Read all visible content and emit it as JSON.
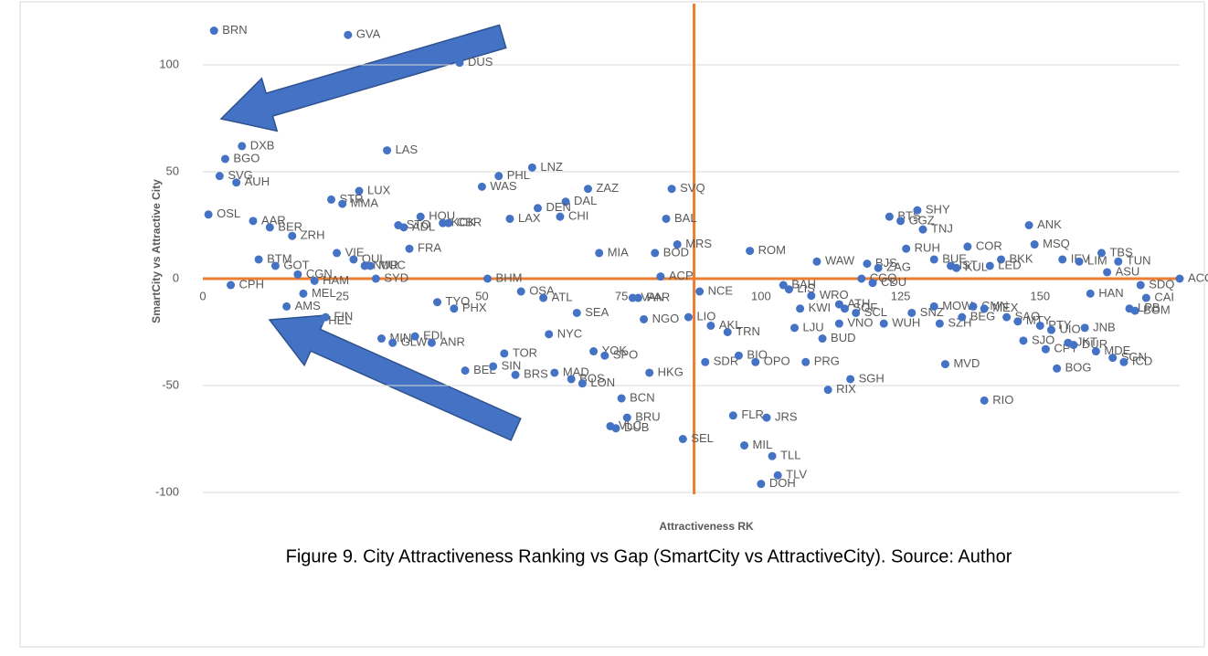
{
  "chart_data": {
    "type": "scatter",
    "x_label": "Attractiveness RK",
    "y_label": "SmartCity vs Attractive City",
    "caption": "Figure 9. City Attractiveness Ranking vs Gap (SmartCity vs AttractiveCity).  Source: Author",
    "color": "#4472c4",
    "line_color": "#ed7d31",
    "vline": 88,
    "hline": 0,
    "grid": true,
    "xlim": [
      0,
      175
    ],
    "ylim": [
      -100,
      125
    ],
    "xticks": [
      0,
      25,
      50,
      75,
      100,
      125,
      150
    ],
    "yticks": [
      -100,
      -50,
      0,
      50,
      100
    ],
    "points": [
      {
        "label": "BRN",
        "x": 2,
        "y": 116
      },
      {
        "label": "GVA",
        "x": 26,
        "y": 114
      },
      {
        "label": "DUS",
        "x": 46,
        "y": 101
      },
      {
        "label": "DXB",
        "x": 7,
        "y": 62
      },
      {
        "label": "BGO",
        "x": 4,
        "y": 56
      },
      {
        "label": "LAS",
        "x": 33,
        "y": 60
      },
      {
        "label": "LNZ",
        "x": 59,
        "y": 52
      },
      {
        "label": "PHL",
        "x": 53,
        "y": 48
      },
      {
        "label": "SVG",
        "x": 3,
        "y": 48
      },
      {
        "label": "AUH",
        "x": 6,
        "y": 45
      },
      {
        "label": "WAS",
        "x": 50,
        "y": 43
      },
      {
        "label": "ZAZ",
        "x": 69,
        "y": 42
      },
      {
        "label": "SVQ",
        "x": 84,
        "y": 42
      },
      {
        "label": "LUX",
        "x": 28,
        "y": 41
      },
      {
        "label": "STR",
        "x": 23,
        "y": 37
      },
      {
        "label": "MMA",
        "x": 25,
        "y": 35
      },
      {
        "label": "DAL",
        "x": 65,
        "y": 36
      },
      {
        "label": "DEN",
        "x": 60,
        "y": 33
      },
      {
        "label": "OSL",
        "x": 1,
        "y": 30
      },
      {
        "label": "HOU",
        "x": 39,
        "y": 29
      },
      {
        "label": "CHI",
        "x": 64,
        "y": 29
      },
      {
        "label": "LAX",
        "x": 55,
        "y": 28
      },
      {
        "label": "BAL",
        "x": 83,
        "y": 28
      },
      {
        "label": "AAR",
        "x": 9,
        "y": 27
      },
      {
        "label": "KCK",
        "x": 43,
        "y": 26
      },
      {
        "label": "CBR",
        "x": 44,
        "y": 26
      },
      {
        "label": "STO",
        "x": 35,
        "y": 25
      },
      {
        "label": "ADL",
        "x": 36,
        "y": 24
      },
      {
        "label": "BER",
        "x": 12,
        "y": 24
      },
      {
        "label": "ZRH",
        "x": 16,
        "y": 20
      },
      {
        "label": "MRS",
        "x": 85,
        "y": 16
      },
      {
        "label": "FRA",
        "x": 37,
        "y": 14
      },
      {
        "label": "ROM",
        "x": 98,
        "y": 13
      },
      {
        "label": "MIA",
        "x": 71,
        "y": 12
      },
      {
        "label": "BOD",
        "x": 81,
        "y": 12
      },
      {
        "label": "VIE",
        "x": 24,
        "y": 12
      },
      {
        "label": "OUL",
        "x": 27,
        "y": 9
      },
      {
        "label": "NUR",
        "x": 29,
        "y": 6
      },
      {
        "label": "MUC",
        "x": 30,
        "y": 6
      },
      {
        "label": "BTM",
        "x": 10,
        "y": 9
      },
      {
        "label": "GOT",
        "x": 13,
        "y": 6
      },
      {
        "label": "CGN",
        "x": 17,
        "y": 2
      },
      {
        "label": "HAM",
        "x": 20,
        "y": -1
      },
      {
        "label": "SYD",
        "x": 31,
        "y": 0
      },
      {
        "label": "BHM",
        "x": 51,
        "y": 0
      },
      {
        "label": "ACP",
        "x": 82,
        "y": 1
      },
      {
        "label": "MEL",
        "x": 18,
        "y": -7
      },
      {
        "label": "CPH",
        "x": 5,
        "y": -3
      },
      {
        "label": "AMS",
        "x": 15,
        "y": -13
      },
      {
        "label": "FIN",
        "x": 22,
        "y": -18
      },
      {
        "label": "HEL",
        "x": 21,
        "y": -20
      },
      {
        "label": "OSA",
        "x": 57,
        "y": -6
      },
      {
        "label": "ATL",
        "x": 61,
        "y": -9
      },
      {
        "label": "TYO",
        "x": 42,
        "y": -11
      },
      {
        "label": "PHX",
        "x": 45,
        "y": -14
      },
      {
        "label": "SEA",
        "x": 67,
        "y": -16
      },
      {
        "label": "VAN",
        "x": 77,
        "y": -9
      },
      {
        "label": "PAR",
        "x": 78,
        "y": -9
      },
      {
        "label": "NGO",
        "x": 79,
        "y": -19
      },
      {
        "label": "LIO",
        "x": 87,
        "y": -18
      },
      {
        "label": "NCE",
        "x": 89,
        "y": -6
      },
      {
        "label": "AKL",
        "x": 91,
        "y": -22
      },
      {
        "label": "TRN",
        "x": 94,
        "y": -25
      },
      {
        "label": "NYC",
        "x": 62,
        "y": -26
      },
      {
        "label": "MIN",
        "x": 32,
        "y": -28
      },
      {
        "label": "GLW",
        "x": 34,
        "y": -30
      },
      {
        "label": "EDI",
        "x": 38,
        "y": -27
      },
      {
        "label": "ANR",
        "x": 41,
        "y": -30
      },
      {
        "label": "TOR",
        "x": 54,
        "y": -35
      },
      {
        "label": "YOK",
        "x": 70,
        "y": -34
      },
      {
        "label": "SPO",
        "x": 72,
        "y": -36
      },
      {
        "label": "BEL",
        "x": 47,
        "y": -43
      },
      {
        "label": "SIN",
        "x": 52,
        "y": -41
      },
      {
        "label": "BRS",
        "x": 56,
        "y": -45
      },
      {
        "label": "MAD",
        "x": 63,
        "y": -44
      },
      {
        "label": "BOS",
        "x": 66,
        "y": -47
      },
      {
        "label": "LON",
        "x": 68,
        "y": -49
      },
      {
        "label": "HKG",
        "x": 80,
        "y": -44
      },
      {
        "label": "SDR",
        "x": 90,
        "y": -39
      },
      {
        "label": "BIO",
        "x": 96,
        "y": -36
      },
      {
        "label": "OPO",
        "x": 99,
        "y": -39
      },
      {
        "label": "PRG",
        "x": 108,
        "y": -39
      },
      {
        "label": "BCN",
        "x": 75,
        "y": -56
      },
      {
        "label": "BRU",
        "x": 76,
        "y": -65
      },
      {
        "label": "VLC",
        "x": 73,
        "y": -69
      },
      {
        "label": "DUB",
        "x": 74,
        "y": -70
      },
      {
        "label": "SEL",
        "x": 86,
        "y": -75
      },
      {
        "label": "FLR",
        "x": 95,
        "y": -64
      },
      {
        "label": "JRS",
        "x": 101,
        "y": -65
      },
      {
        "label": "MIL",
        "x": 97,
        "y": -78
      },
      {
        "label": "TLL",
        "x": 102,
        "y": -83
      },
      {
        "label": "TLV",
        "x": 103,
        "y": -92
      },
      {
        "label": "DOH",
        "x": 100,
        "y": -96
      },
      {
        "label": "BAH",
        "x": 104,
        "y": -3
      },
      {
        "label": "LIS",
        "x": 105,
        "y": -5
      },
      {
        "label": "KWI",
        "x": 107,
        "y": -14
      },
      {
        "label": "WRO",
        "x": 109,
        "y": -8
      },
      {
        "label": "LJU",
        "x": 106,
        "y": -23
      },
      {
        "label": "BUD",
        "x": 111,
        "y": -28
      },
      {
        "label": "ATH",
        "x": 114,
        "y": -12
      },
      {
        "label": "SOF",
        "x": 115,
        "y": -14
      },
      {
        "label": "SCL",
        "x": 117,
        "y": -16
      },
      {
        "label": "VNO",
        "x": 114,
        "y": -21
      },
      {
        "label": "WUH",
        "x": 122,
        "y": -21
      },
      {
        "label": "RIX",
        "x": 112,
        "y": -52
      },
      {
        "label": "SGH",
        "x": 116,
        "y": -47
      },
      {
        "label": "WAW",
        "x": 110,
        "y": 8
      },
      {
        "label": "BJS",
        "x": 119,
        "y": 7
      },
      {
        "label": "ZAG",
        "x": 121,
        "y": 5
      },
      {
        "label": "CGQ",
        "x": 118,
        "y": 0
      },
      {
        "label": "CDU",
        "x": 120,
        "y": -2
      },
      {
        "label": "RUH",
        "x": 126,
        "y": 14
      },
      {
        "label": "BTS",
        "x": 123,
        "y": 29
      },
      {
        "label": "GGZ",
        "x": 125,
        "y": 27
      },
      {
        "label": "SHY",
        "x": 128,
        "y": 32
      },
      {
        "label": "TNJ",
        "x": 129,
        "y": 23
      },
      {
        "label": "SNZ",
        "x": 127,
        "y": -16
      },
      {
        "label": "SZH",
        "x": 132,
        "y": -21
      },
      {
        "label": "MVD",
        "x": 133,
        "y": -40
      },
      {
        "label": "COR",
        "x": 137,
        "y": 15
      },
      {
        "label": "BUE",
        "x": 131,
        "y": 9
      },
      {
        "label": "IST",
        "x": 134,
        "y": 6
      },
      {
        "label": "KUL",
        "x": 135,
        "y": 5
      },
      {
        "label": "BKK",
        "x": 143,
        "y": 9
      },
      {
        "label": "LED",
        "x": 141,
        "y": 6
      },
      {
        "label": "MOW",
        "x": 131,
        "y": -13
      },
      {
        "label": "BEG",
        "x": 136,
        "y": -18
      },
      {
        "label": "CMN",
        "x": 138,
        "y": -13
      },
      {
        "label": "MEX",
        "x": 140,
        "y": -14
      },
      {
        "label": "SAO",
        "x": 144,
        "y": -18
      },
      {
        "label": "MTY",
        "x": 146,
        "y": -20
      },
      {
        "label": "RIO",
        "x": 140,
        "y": -57
      },
      {
        "label": "SJO",
        "x": 147,
        "y": -29
      },
      {
        "label": "CPT",
        "x": 151,
        "y": -33
      },
      {
        "label": "JKT",
        "x": 155,
        "y": -30
      },
      {
        "label": "DUR",
        "x": 156,
        "y": -31
      },
      {
        "label": "MDE",
        "x": 160,
        "y": -34
      },
      {
        "label": "BOG",
        "x": 153,
        "y": -42
      },
      {
        "label": "SGN",
        "x": 163,
        "y": -37
      },
      {
        "label": "ICD",
        "x": 165,
        "y": -39
      },
      {
        "label": "ANK",
        "x": 148,
        "y": 25
      },
      {
        "label": "MSQ",
        "x": 149,
        "y": 16
      },
      {
        "label": "IEV",
        "x": 154,
        "y": 9
      },
      {
        "label": "LIM",
        "x": 157,
        "y": 8
      },
      {
        "label": "TBS",
        "x": 161,
        "y": 12
      },
      {
        "label": "TUN",
        "x": 164,
        "y": 8
      },
      {
        "label": "ASU",
        "x": 162,
        "y": 3
      },
      {
        "label": "PTY",
        "x": 150,
        "y": -22
      },
      {
        "label": "UIO",
        "x": 152,
        "y": -24
      },
      {
        "label": "JNB",
        "x": 158,
        "y": -23
      },
      {
        "label": "HAN",
        "x": 159,
        "y": -7
      },
      {
        "label": "LPB",
        "x": 166,
        "y": -14
      },
      {
        "label": "BOM",
        "x": 167,
        "y": -15
      },
      {
        "label": "SDQ",
        "x": 168,
        "y": -3
      },
      {
        "label": "CAI",
        "x": 169,
        "y": -9
      },
      {
        "label": "ACC",
        "x": 175,
        "y": 0
      }
    ]
  }
}
